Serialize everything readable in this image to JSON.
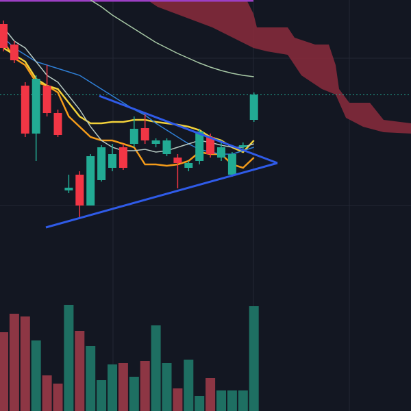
{
  "chart_data": {
    "type": "candlestick",
    "ylim": [
      0,
      600
    ],
    "vlim": [
      0,
      600
    ],
    "up_color": "#22ab94",
    "down_color": "#f23645",
    "volume_up_color": "#1e6f62",
    "volume_down_color": "#8d3644",
    "open": [
      565,
      535,
      475,
      405,
      475,
      435,
      322,
      345,
      300,
      337,
      355,
      385,
      390,
      413,
      390,
      375,
      370,
      355,
      365,
      400,
      370,
      345,
      385,
      425
    ],
    "high": [
      570,
      540,
      480,
      490,
      505,
      440,
      345,
      350,
      375,
      388,
      390,
      390,
      430,
      435,
      398,
      398,
      375,
      365,
      412,
      405,
      395,
      378,
      392,
      465
    ],
    "low": [
      525,
      508,
      400,
      365,
      430,
      400,
      318,
      280,
      300,
      335,
      350,
      352,
      385,
      390,
      385,
      372,
      325,
      350,
      360,
      370,
      365,
      342,
      382,
      422
    ],
    "close": [
      530,
      512,
      405,
      485,
      435,
      403,
      326,
      300,
      372,
      385,
      375,
      355,
      412,
      395,
      395,
      395,
      362,
      362,
      408,
      375,
      385,
      375,
      388,
      462
    ],
    "volume": [
      115,
      142,
      138,
      103,
      52,
      40,
      155,
      117,
      95,
      45,
      68,
      70,
      50,
      73,
      125,
      70,
      33,
      75,
      22,
      48,
      30,
      30,
      30,
      153
    ],
    "series": [
      {
        "color": "#f59c1a",
        "values": [
          540,
          515,
          505,
          480,
          475,
          465,
          430,
          415,
          400,
          395,
          395,
          390,
          385,
          360,
          360,
          358,
          360,
          365,
          378,
          375,
          375,
          360,
          355,
          370
        ]
      },
      {
        "color": "#f2d13a",
        "values": [
          530,
          520,
          510,
          485,
          475,
          470,
          450,
          430,
          420,
          420,
          422,
          422,
          425,
          425,
          422,
          420,
          418,
          415,
          410,
          400,
          395,
          385,
          378,
          395
        ]
      },
      {
        "color": "#2f7fd6",
        "values": [
          545,
          530,
          520,
          510,
          505,
          500,
          495,
          490,
          480,
          470,
          460,
          450,
          440,
          432,
          420,
          410,
          400,
          390,
          382,
          378,
          375,
          375,
          380,
          385
        ]
      },
      {
        "color": "#b7c9c2",
        "values": [
          560,
          540,
          530,
          510,
          490,
          480,
          460,
          440,
          415,
          395,
          385,
          380,
          380,
          382,
          378,
          380,
          385,
          390,
          395,
          392,
          388,
          385,
          385,
          390
        ]
      },
      {
        "color": "#a8c9a6",
        "values": [
          null,
          null,
          null,
          null,
          null,
          null,
          null,
          null,
          600,
          590,
          578,
          568,
          558,
          548,
          538,
          530,
          522,
          515,
          508,
          502,
          497,
          493,
          490,
          488
        ]
      }
    ]
  }
}
